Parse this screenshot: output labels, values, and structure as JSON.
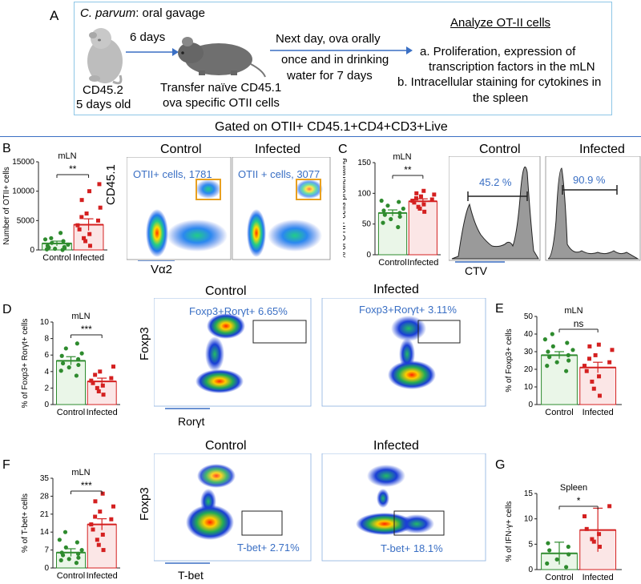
{
  "panelA": {
    "letter": "A",
    "organism": "C. parvum",
    "route": ": oral gavage",
    "mouse_label": "CD45.2",
    "mouse_age": "5 days old",
    "arrow1": "6 days",
    "transfer1": "Transfer naïve CD45.1",
    "transfer2": "ova specific OTII cells",
    "ova1": "Next day, ova orally",
    "ova2": "once and in drinking",
    "ova3": "water for 7 days",
    "analyze_title": "Analyze OT-II cells",
    "a1": "a. Proliferation, expression of",
    "a2": "transcription factors in the mLN",
    "b1": "b. Intracellular staining for cytokines in",
    "b2": "the spleen"
  },
  "gated_title": "Gated on OTII+ CD45.1+CD4+CD3+Live",
  "colors": {
    "control": "#2e8b2e",
    "infected": "#d42020",
    "accent": "#3a6fc4",
    "gate": "#e8a020"
  },
  "panelB": {
    "letter": "B",
    "chart_data": {
      "type": "bar",
      "title": "mLN",
      "ylabel": "Number of OTII+ cells",
      "categories": [
        "Control",
        "Infected"
      ],
      "ylim": [
        0,
        15000
      ],
      "yticks": [
        "0",
        "5000",
        "10000",
        "15000"
      ],
      "means": [
        1100,
        4300
      ],
      "sem": [
        400,
        1000
      ],
      "significance": "**",
      "points_control": [
        0,
        100,
        200,
        300,
        400,
        500,
        700,
        900,
        1200,
        1500,
        1800,
        2000,
        2900
      ],
      "points_infected": [
        700,
        1500,
        2000,
        2700,
        3500,
        4200,
        5000,
        5600,
        6200,
        7200,
        8500,
        10000,
        11200
      ]
    },
    "flow_control_title": "Control",
    "flow_infected_title": "Infected",
    "gate_control": "OTII+ cells, 1781",
    "gate_infected": "OTII + cells, 3077",
    "y_axis": "CD45.1",
    "x_axis": "Vα2"
  },
  "panelC": {
    "letter": "C",
    "chart_data": {
      "type": "bar",
      "title": "mLN",
      "ylabel": "% of OTII+ cells proliferating",
      "categories": [
        "Control",
        "Infected"
      ],
      "ylim": [
        0,
        150
      ],
      "yticks": [
        "0",
        "50",
        "100",
        "150"
      ],
      "means": [
        68,
        87
      ],
      "sem": [
        5,
        4
      ],
      "significance": "**",
      "points_control": [
        45,
        52,
        58,
        62,
        65,
        68,
        72,
        75,
        80,
        86,
        88
      ],
      "points_infected": [
        70,
        75,
        78,
        82,
        85,
        88,
        90,
        92,
        95,
        98,
        100,
        104
      ]
    },
    "hist_control_title": "Control",
    "hist_infected_title": "Infected",
    "hist_control_value": "45.2 %",
    "hist_infected_value": "90.9 %",
    "x_axis": "CTV"
  },
  "panelD": {
    "letter": "D",
    "chart_data": {
      "type": "bar",
      "title": "mLN",
      "ylabel": "% of Foxp3+ Rorγt+ cells",
      "categories": [
        "Control",
        "Infected"
      ],
      "ylim": [
        0,
        10
      ],
      "yticks": [
        "0",
        "2",
        "4",
        "6",
        "8",
        "10"
      ],
      "means": [
        5.3,
        2.8
      ],
      "sem": [
        0.5,
        0.4
      ],
      "significance": "***",
      "points_control": [
        3.5,
        4.1,
        4.5,
        4.8,
        5.0,
        5.5,
        5.9,
        6.2,
        6.8,
        7.4
      ],
      "points_infected": [
        1.2,
        1.6,
        2.0,
        2.3,
        2.6,
        2.9,
        3.2,
        3.6,
        4.0,
        4.6
      ]
    },
    "flow_control_title": "Control",
    "flow_infected_title": "Infected",
    "gate_control": "Foxp3+Rorγt+ 6.65%",
    "gate_infected": "Foxp3+Rorγt+ 3.11%",
    "y_axis": "Foxp3",
    "x_axis": "Rorγt"
  },
  "panelE": {
    "letter": "E",
    "chart_data": {
      "type": "bar",
      "title": "mLN",
      "ylabel": "% of Foxp3+ cells",
      "categories": [
        "Control",
        "Infected"
      ],
      "ylim": [
        0,
        50
      ],
      "yticks": [
        "0",
        "10",
        "20",
        "30",
        "40",
        "50"
      ],
      "means": [
        28,
        21
      ],
      "sem": [
        2,
        3
      ],
      "significance": "ns",
      "points_control": [
        19,
        22,
        24,
        25,
        27,
        28,
        30,
        31,
        33,
        35,
        37,
        40
      ],
      "points_infected": [
        5,
        9,
        13,
        16,
        19,
        22,
        24,
        26,
        28,
        31,
        33,
        34
      ]
    }
  },
  "panelF": {
    "letter": "F",
    "chart_data": {
      "type": "bar",
      "title": "mLN",
      "ylabel": "% of T-bet+ cells",
      "categories": [
        "Control",
        "Infected"
      ],
      "ylim": [
        0,
        35
      ],
      "yticks": [
        "0",
        "7",
        "14",
        "21",
        "28",
        "35"
      ],
      "means": [
        6,
        17
      ],
      "sem": [
        1.5,
        2.2
      ],
      "significance": "***",
      "points_control": [
        2,
        3,
        3.5,
        4,
        5,
        5.5,
        6,
        7,
        8,
        10,
        11,
        14
      ],
      "points_infected": [
        7,
        9,
        11,
        13,
        15,
        17,
        19,
        20,
        22,
        24,
        26,
        29
      ]
    },
    "flow_control_title": "Control",
    "flow_infected_title": "Infected",
    "gate_control": "T-bet+ 2.71%",
    "gate_infected": "T-bet+ 18.1%",
    "y_axis": "Foxp3",
    "x_axis": "T-bet"
  },
  "panelG": {
    "letter": "G",
    "chart_data": {
      "type": "bar",
      "title": "Spleen",
      "ylabel": "% of IFN-γ+ cells",
      "categories": [
        "Control",
        "Infected"
      ],
      "ylim": [
        0,
        15
      ],
      "yticks": [
        "0",
        "5",
        "10",
        "15"
      ],
      "means": [
        3.2,
        7.8
      ],
      "sem": [
        2.2,
        4.3
      ],
      "significance": "*",
      "points_control": [
        0.5,
        1.2,
        2,
        3,
        3.8,
        4.5,
        5.2
      ],
      "points_infected": [
        4.5,
        5.5,
        6,
        7,
        8,
        10.5,
        12.5
      ]
    }
  }
}
